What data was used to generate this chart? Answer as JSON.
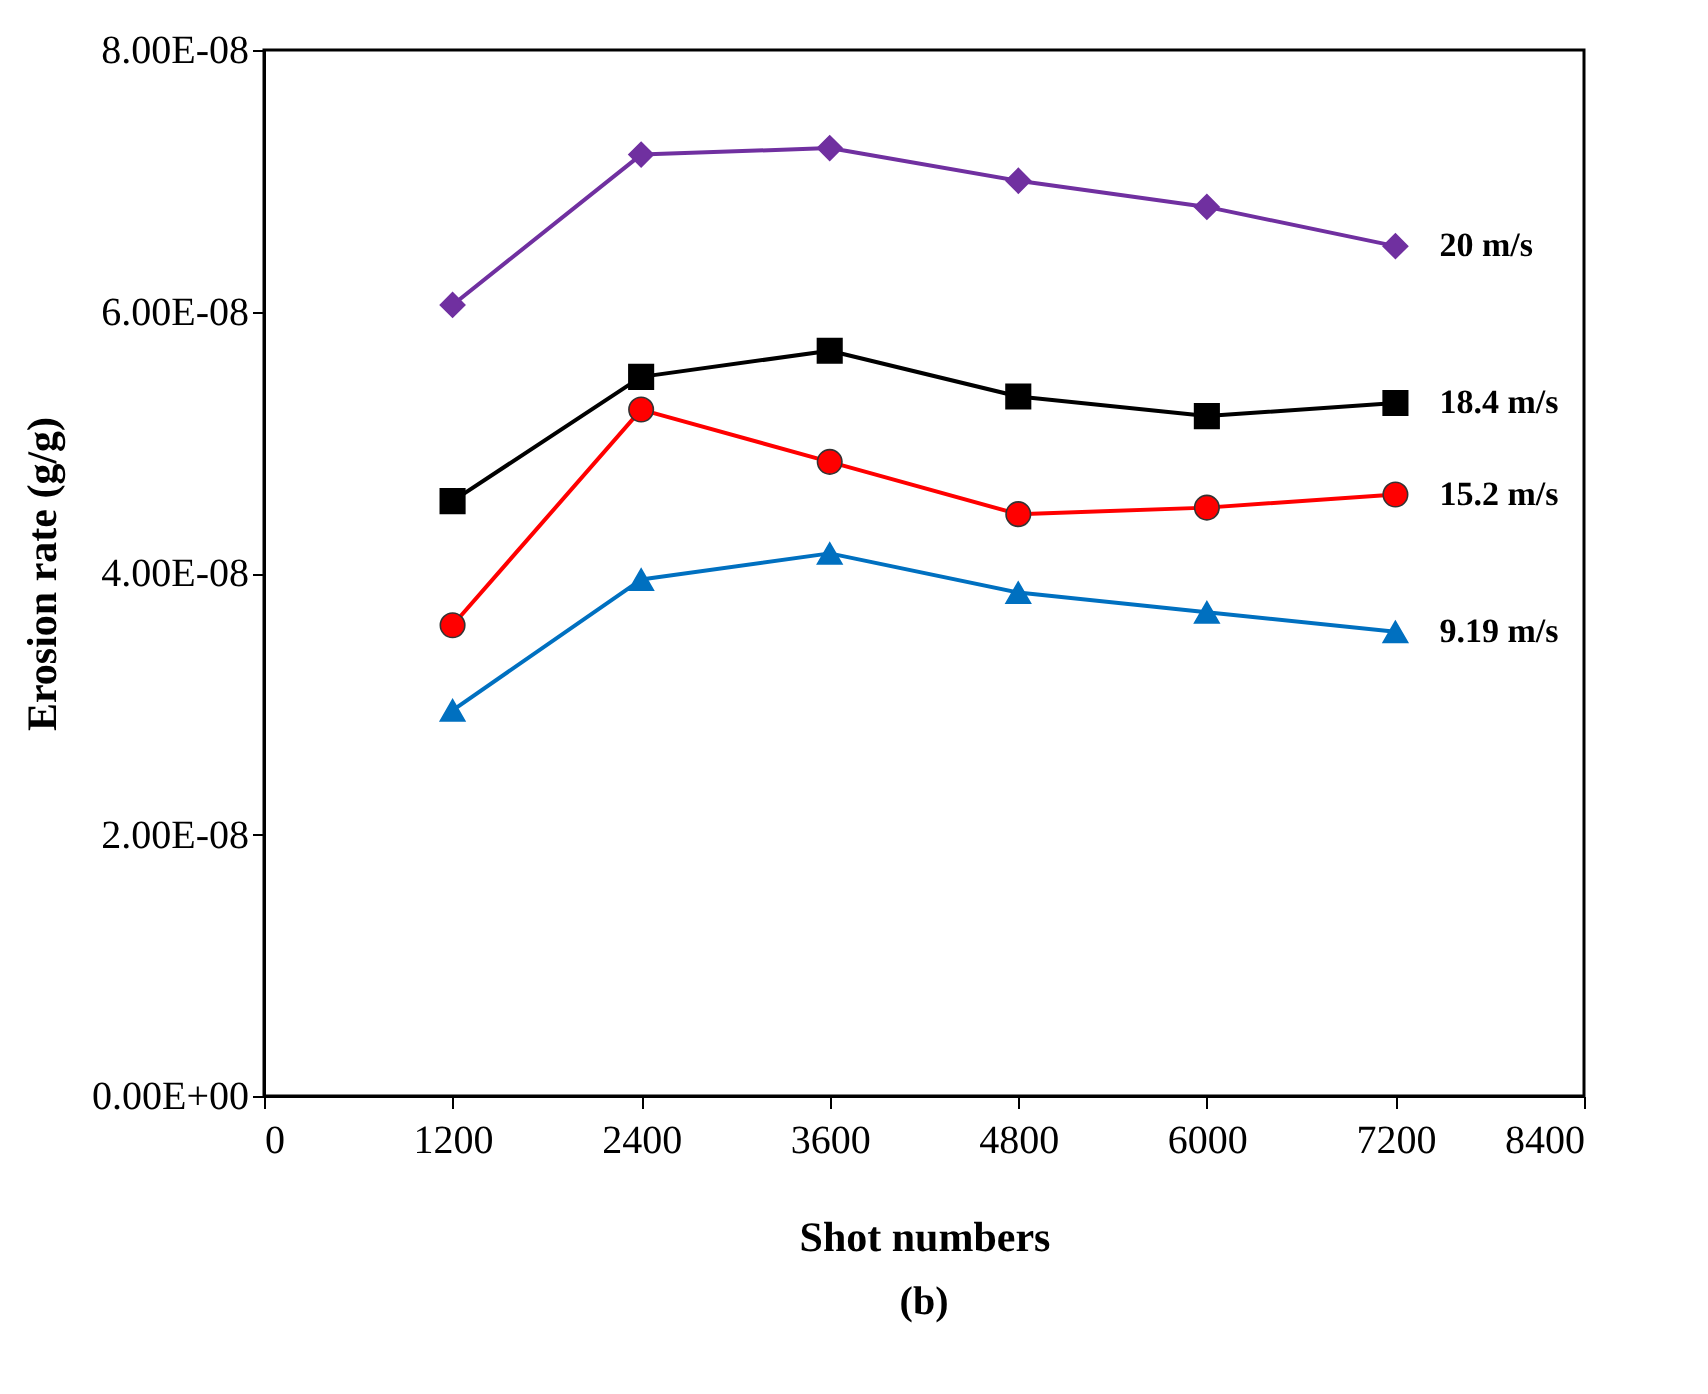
{
  "chart_data": {
    "type": "line",
    "xlabel": "Shot numbers",
    "ylabel": "Erosion rate (g/g)",
    "annotations": [
      "(b)"
    ],
    "x": [
      1200,
      2400,
      3600,
      4800,
      6000,
      7200
    ],
    "series": [
      {
        "name": "20 m/s",
        "color": "#7030a0",
        "marker": "diamond",
        "values": [
          6.05e-08,
          7.2e-08,
          7.25e-08,
          7e-08,
          6.8e-08,
          6.5e-08
        ]
      },
      {
        "name": "18.4 m/s",
        "color": "#000000",
        "marker": "square",
        "values": [
          4.55e-08,
          5.5e-08,
          5.7e-08,
          5.35e-08,
          5.2e-08,
          5.3e-08
        ]
      },
      {
        "name": "15.2 m/s",
        "color": "#ff0000",
        "marker": "circle",
        "values": [
          3.6e-08,
          5.25e-08,
          4.85e-08,
          4.45e-08,
          4.5e-08,
          4.6e-08
        ]
      },
      {
        "name": "9.19 m/s",
        "color": "#0070c0",
        "marker": "triangle",
        "values": [
          2.95e-08,
          3.95e-08,
          4.15e-08,
          3.85e-08,
          3.7e-08,
          3.55e-08
        ]
      }
    ],
    "xlim": [
      0,
      8400
    ],
    "xticks": [
      0,
      1200,
      2400,
      3600,
      4800,
      6000,
      7200,
      8400
    ],
    "ylim": [
      0,
      8e-08
    ],
    "yticks": [
      {
        "value": 0,
        "label": "0.00E+00"
      },
      {
        "value": 2e-08,
        "label": "2.00E-08"
      },
      {
        "value": 4e-08,
        "label": "4.00E-08"
      },
      {
        "value": 6e-08,
        "label": "6.00E-08"
      },
      {
        "value": 8e-08,
        "label": "8.00E-08"
      }
    ],
    "grid": false,
    "line_style": "solid"
  }
}
